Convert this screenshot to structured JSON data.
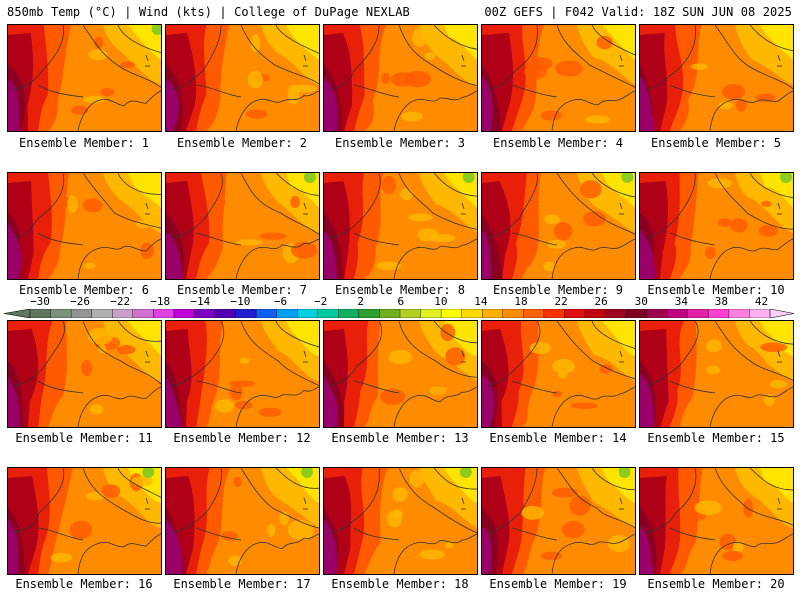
{
  "header": {
    "left": "850mb Temp (°C) | Wind (kts) | College of DuPage NEXLAB",
    "right": "00Z GEFS | F042 Valid: 18Z SUN JUN 08 2025"
  },
  "members": [
    "Ensemble Member: 1",
    "Ensemble Member: 2",
    "Ensemble Member: 3",
    "Ensemble Member: 4",
    "Ensemble Member: 5",
    "Ensemble Member: 6",
    "Ensemble Member: 7",
    "Ensemble Member: 8",
    "Ensemble Member: 9",
    "Ensemble Member: 10",
    "Ensemble Member: 11",
    "Ensemble Member: 12",
    "Ensemble Member: 13",
    "Ensemble Member: 14",
    "Ensemble Member: 15",
    "Ensemble Member: 16",
    "Ensemble Member: 17",
    "Ensemble Member: 18",
    "Ensemble Member: 19",
    "Ensemble Member: 20"
  ],
  "colorbar": {
    "labels": [
      "−30",
      "−26",
      "−22",
      "−18",
      "−14",
      "−10",
      "−6",
      "−2",
      "2",
      "6",
      "10",
      "14",
      "18",
      "22",
      "26",
      "30",
      "34",
      "38",
      "42"
    ],
    "colors": [
      "#5e7560",
      "#7a917c",
      "#949494",
      "#b0b0b0",
      "#c8a0c8",
      "#d070d0",
      "#e040e0",
      "#c000d8",
      "#8000c0",
      "#5000b0",
      "#2020d0",
      "#1060f0",
      "#00a0f0",
      "#00d0e0",
      "#00c8a0",
      "#10b060",
      "#30a030",
      "#70b020",
      "#b0d020",
      "#e0f020",
      "#ffff00",
      "#ffd800",
      "#ffb000",
      "#ff8c00",
      "#ff6000",
      "#ff3000",
      "#e01010",
      "#c00010",
      "#a00020",
      "#800020",
      "#a00050",
      "#c00080",
      "#e020a8",
      "#ff40d0",
      "#ff80e0",
      "#ffb0f0"
    ]
  },
  "map_palette": {
    "yellow": "#ffe400",
    "light_orange": "#ffb800",
    "orange": "#ff8c00",
    "dark_orange": "#ff5a00",
    "red": "#e8200a",
    "dark_red": "#b00018",
    "maroon": "#8a0020",
    "magenta": "#9a0068",
    "green": "#8ccc20"
  }
}
